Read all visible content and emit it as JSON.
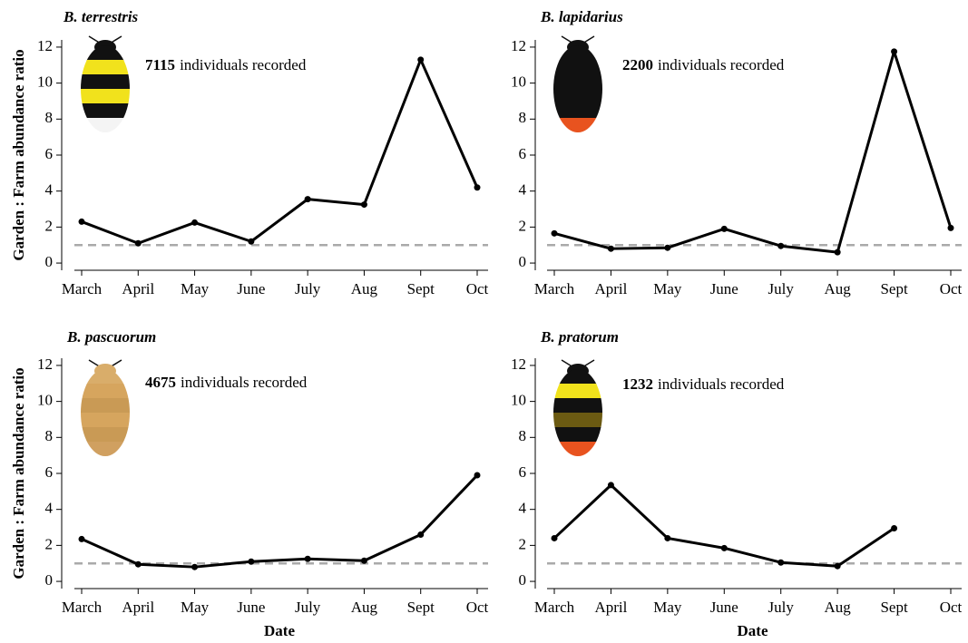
{
  "chart_data": [
    {
      "type": "line",
      "title": "B. terrestris",
      "count": 7115,
      "note": "individuals recorded",
      "ylabel": "Garden : Farm abundance ratio",
      "categories": [
        "March",
        "April",
        "May",
        "June",
        "July",
        "Aug",
        "Sept",
        "Oct"
      ],
      "values": [
        2.3,
        1.1,
        2.25,
        1.2,
        3.55,
        3.25,
        11.3,
        4.2
      ],
      "color": "#000000",
      "ylim": [
        -0.4,
        12.4
      ],
      "yticks": [
        0,
        2,
        4,
        6,
        8,
        10,
        12
      ],
      "hline": 1
    },
    {
      "type": "line",
      "title": "B. lapidarius",
      "count": 2200,
      "note": "individuals recorded",
      "categories": [
        "March",
        "April",
        "May",
        "June",
        "July",
        "Aug",
        "Sept",
        "Oct"
      ],
      "values": [
        1.65,
        0.8,
        0.85,
        1.9,
        0.95,
        0.6,
        11.75,
        1.95
      ],
      "color": "#000000",
      "ylim": [
        -0.4,
        12.4
      ],
      "yticks": [
        0,
        2,
        4,
        6,
        8,
        10,
        12
      ],
      "hline": 1
    },
    {
      "type": "line",
      "title": "B. pascuorum",
      "count": 4675,
      "note": "individuals recorded",
      "ylabel": "Garden : Farm abundance ratio",
      "xlabel": "Date",
      "categories": [
        "March",
        "April",
        "May",
        "June",
        "July",
        "Aug",
        "Sept",
        "Oct"
      ],
      "values": [
        2.35,
        0.95,
        0.8,
        1.1,
        1.25,
        1.15,
        2.6,
        5.9
      ],
      "color": "#000000",
      "ylim": [
        -0.4,
        12.4
      ],
      "yticks": [
        0,
        2,
        4,
        6,
        8,
        10,
        12
      ],
      "hline": 1
    },
    {
      "type": "line",
      "title": "B. pratorum",
      "count": 1232,
      "note": "individuals recorded",
      "xlabel": "Date",
      "categories": [
        "March",
        "April",
        "May",
        "June",
        "July",
        "Aug",
        "Sept",
        "Oct"
      ],
      "values": [
        2.4,
        5.35,
        2.4,
        1.85,
        1.05,
        0.85,
        2.95,
        null
      ],
      "color": "#000000",
      "ylim": [
        -0.4,
        12.4
      ],
      "yticks": [
        0,
        2,
        4,
        6,
        8,
        10,
        12
      ],
      "hline": 1
    }
  ]
}
